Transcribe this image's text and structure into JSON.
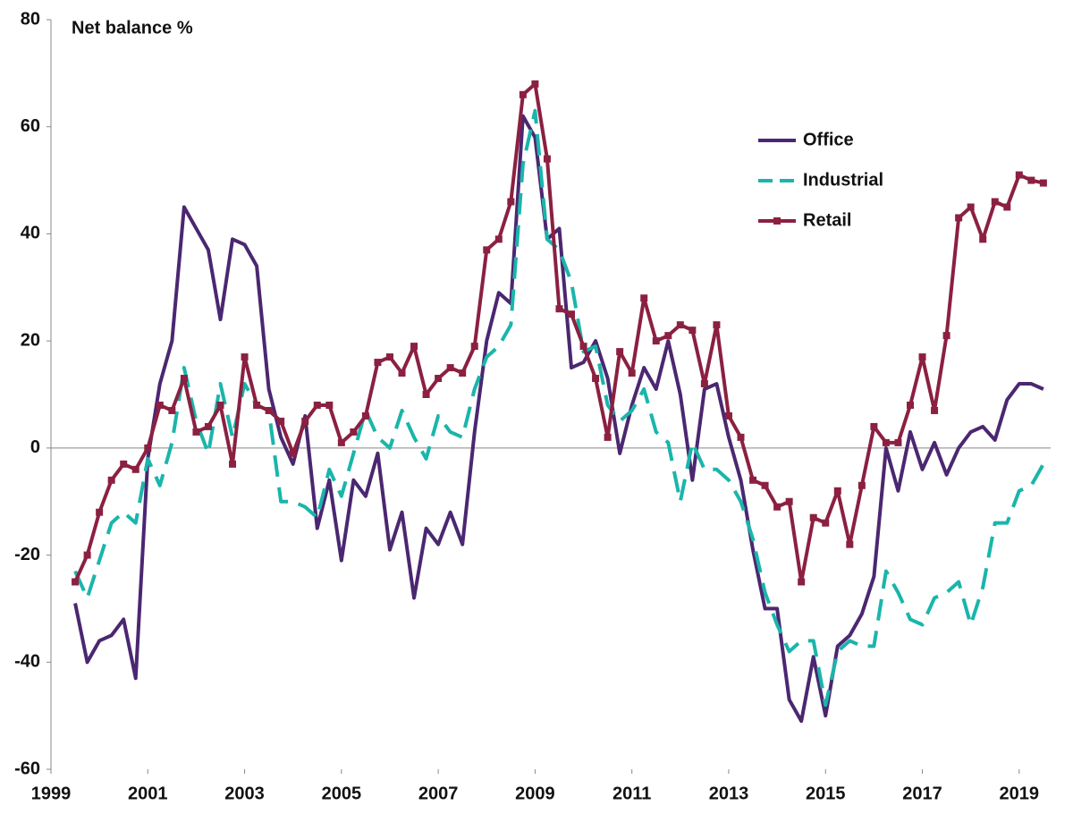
{
  "chart_data": {
    "type": "line",
    "ylabel": "Net balance %",
    "x": [
      1999.5,
      1999.75,
      2000,
      2000.25,
      2000.5,
      2000.75,
      2001,
      2001.25,
      2001.5,
      2001.75,
      2002,
      2002.25,
      2002.5,
      2002.75,
      2003,
      2003.25,
      2003.5,
      2003.75,
      2004,
      2004.25,
      2004.5,
      2004.75,
      2005,
      2005.25,
      2005.5,
      2005.75,
      2006,
      2006.25,
      2006.5,
      2006.75,
      2007,
      2007.25,
      2007.5,
      2007.75,
      2008,
      2008.25,
      2008.5,
      2008.75,
      2009,
      2009.25,
      2009.5,
      2009.75,
      2010,
      2010.25,
      2010.5,
      2010.75,
      2011,
      2011.25,
      2011.5,
      2011.75,
      2012,
      2012.25,
      2012.5,
      2012.75,
      2013,
      2013.25,
      2013.5,
      2013.75,
      2014,
      2014.25,
      2014.5,
      2014.75,
      2015,
      2015.25,
      2015.5,
      2015.75,
      2016,
      2016.25,
      2016.5,
      2016.75,
      2017,
      2017.25,
      2017.5,
      2017.75,
      2018,
      2018.25,
      2018.5,
      2018.75,
      2019,
      2019.25,
      2019.5
    ],
    "series": [
      {
        "name": "Office",
        "color": "#4b2771",
        "style": "solid",
        "values": [
          -29,
          -40,
          -36,
          -35,
          -32,
          -43,
          -2,
          12,
          20,
          45,
          41,
          37,
          24,
          39,
          38,
          34,
          11,
          2,
          -3,
          6,
          -15,
          -6,
          -21,
          -6,
          -9,
          -1,
          -19,
          -12,
          -28,
          -15,
          -18,
          -12,
          -18,
          3,
          20,
          29,
          27,
          62,
          58,
          39,
          41,
          15,
          16,
          20,
          13,
          -1,
          8,
          15,
          11,
          20,
          10,
          -6,
          11,
          12,
          2,
          -6,
          -19,
          -30,
          -30,
          -47,
          -51,
          -39,
          -50,
          -37,
          -35,
          -31,
          -24,
          0,
          -8,
          3,
          -4,
          1,
          -5,
          0,
          3,
          4,
          1.5,
          9,
          12,
          12,
          11
        ]
      },
      {
        "name": "Industrial",
        "color": "#1ab5ab",
        "style": "dashed",
        "values": [
          -23,
          -28,
          -21,
          -14,
          -12,
          -14,
          -2,
          -7,
          1,
          15,
          5,
          -1,
          12,
          2,
          12,
          8,
          7,
          -10,
          -10,
          -11,
          -13,
          -4,
          -9,
          -1,
          7,
          2,
          0,
          7,
          2,
          -2,
          6,
          3,
          2,
          11,
          17,
          19,
          23,
          53,
          63,
          39,
          37,
          31,
          18,
          19,
          8,
          5,
          7,
          11,
          3,
          1,
          -10,
          1,
          -4,
          -4,
          -6,
          -10,
          -17,
          -27,
          -33,
          -38,
          -36,
          -36,
          -48,
          -38,
          -36,
          -37,
          -37,
          -23,
          -27,
          -32,
          -33,
          -28,
          -27,
          -25,
          -33,
          -26,
          -14,
          -14,
          -8,
          -7,
          -3
        ]
      },
      {
        "name": "Retail",
        "color": "#8b2041",
        "style": "solid",
        "marker": "square",
        "values": [
          -25,
          -20,
          -12,
          -6,
          -3,
          -4,
          0,
          8,
          7,
          13,
          3,
          4,
          8,
          -3,
          17,
          8,
          7,
          5,
          -1,
          5,
          8,
          8,
          1,
          3,
          6,
          16,
          17,
          14,
          19,
          10,
          13,
          15,
          14,
          19,
          37,
          39,
          46,
          66,
          68,
          54,
          26,
          25,
          19,
          13,
          2,
          18,
          14,
          28,
          20,
          21,
          23,
          22,
          12,
          23,
          6,
          2,
          -6,
          -7,
          -11,
          -10,
          -25,
          -13,
          -14,
          -8,
          -18,
          -7,
          4,
          1,
          1,
          8,
          17,
          7,
          21,
          43,
          45,
          39,
          46,
          45,
          51,
          50,
          49.5
        ]
      }
    ],
    "xlim": [
      1999,
      2019.65
    ],
    "xticks": [
      1999,
      2001,
      2003,
      2005,
      2007,
      2009,
      2011,
      2013,
      2015,
      2017,
      2019
    ],
    "ylim": [
      -60,
      80
    ],
    "yticks": [
      -60,
      -40,
      -20,
      0,
      20,
      40,
      60,
      80
    ],
    "legend": "upper right"
  }
}
